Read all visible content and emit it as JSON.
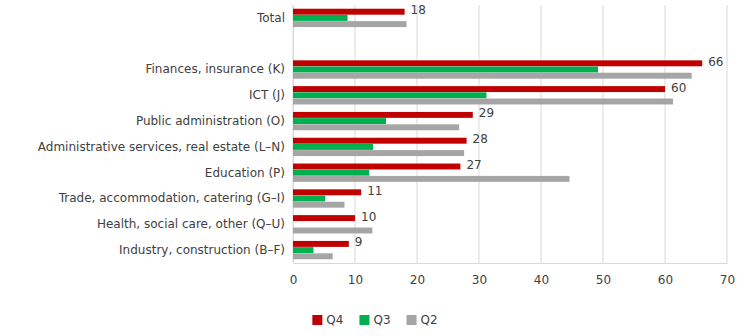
{
  "chart_data": {
    "type": "bar",
    "orientation": "horizontal",
    "categories": [
      "Total",
      null,
      "Finances, insurance (K)",
      "ICT (J)",
      "Public administration (O)",
      "Administrative services, real estate (L–N)",
      "Education (P)",
      "Trade, accommodation, catering (G–I)",
      "Health, social care, other (Q–U)",
      "Industry, construction (B–F)"
    ],
    "series": [
      {
        "name": "Q4",
        "color": "#c00000",
        "values": [
          18,
          null,
          66,
          60,
          29,
          28,
          27,
          11,
          10,
          9
        ],
        "data_labels": true
      },
      {
        "name": "Q3",
        "color": "#00b050",
        "values": [
          8.8,
          null,
          49.2,
          31.2,
          15,
          12.9,
          12.3,
          5.2,
          0,
          3.3
        ]
      },
      {
        "name": "Q2",
        "color": "#a5a5a5",
        "values": [
          18.3,
          null,
          64.3,
          61.3,
          26.8,
          27.6,
          44.6,
          8.3,
          12.8,
          6.4
        ]
      }
    ],
    "xlim": [
      0,
      70
    ],
    "xticks": [
      0,
      10,
      20,
      30,
      40,
      50,
      60,
      70
    ],
    "grid": true,
    "legend": "bottom"
  }
}
